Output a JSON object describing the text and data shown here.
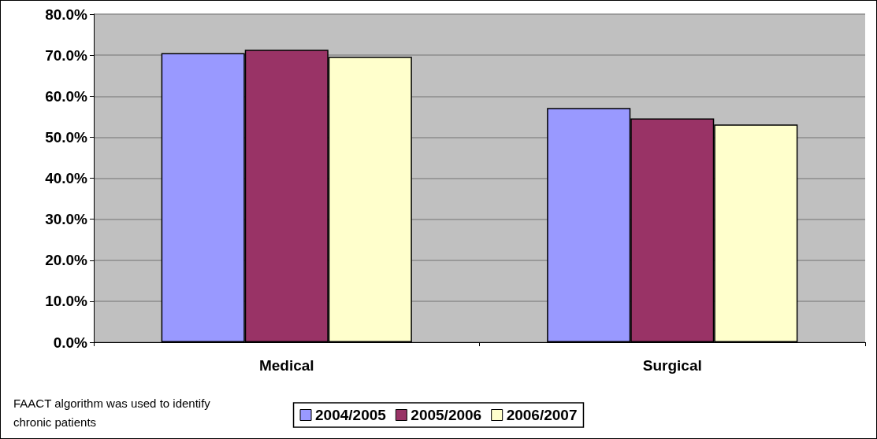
{
  "chart_data": {
    "type": "bar",
    "categories": [
      "Medical",
      "Surgical"
    ],
    "series": [
      {
        "name": "2004/2005",
        "color": "#9999ff",
        "values": [
          70.5,
          57.1
        ]
      },
      {
        "name": "2005/2006",
        "color": "#993366",
        "values": [
          71.3,
          54.6
        ]
      },
      {
        "name": "2006/2007",
        "color": "#ffffcc",
        "values": [
          69.6,
          53.1
        ]
      }
    ],
    "ylim": [
      0,
      80
    ],
    "yticks": [
      {
        "value": 0,
        "label": "0.0%"
      },
      {
        "value": 10,
        "label": "10.0%"
      },
      {
        "value": 20,
        "label": "20.0%"
      },
      {
        "value": 30,
        "label": "30.0%"
      },
      {
        "value": 40,
        "label": "40.0%"
      },
      {
        "value": 50,
        "label": "50.0%"
      },
      {
        "value": 60,
        "label": "60.0%"
      },
      {
        "value": 70,
        "label": "70.0%"
      },
      {
        "value": 80,
        "label": "80.0%"
      }
    ],
    "grid": "y",
    "legend": "bottom",
    "annotations": [
      "FAACT algorithm was used to identify chronic patients"
    ]
  }
}
